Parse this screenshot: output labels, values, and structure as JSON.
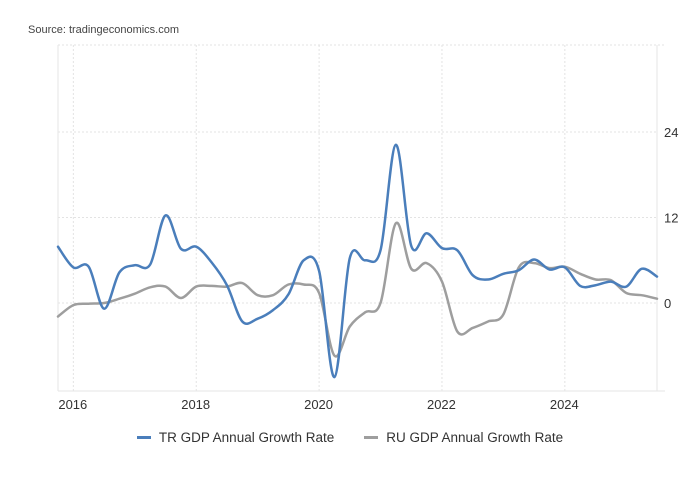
{
  "source": "Source: tradingeconomics.com",
  "chart_data": {
    "type": "line",
    "title": "",
    "xlabel": "",
    "ylabel": "",
    "xlim": [
      2015.75,
      2025.5
    ],
    "ylim": [
      -10.5,
      30
    ],
    "x_ticks": [
      2016,
      2018,
      2020,
      2022,
      2024
    ],
    "x_tick_labels": [
      "2016",
      "2018",
      "2020",
      "2022",
      "2024"
    ],
    "y_ticks": [
      0,
      12,
      24
    ],
    "y_tick_labels": [
      "0",
      "12",
      "24"
    ],
    "y_axis_side": "right",
    "grid": true,
    "legend_position": "bottom-center",
    "x": [
      2015.75,
      2016.0,
      2016.25,
      2016.5,
      2016.75,
      2017.0,
      2017.25,
      2017.5,
      2017.75,
      2018.0,
      2018.25,
      2018.5,
      2018.75,
      2019.0,
      2019.25,
      2019.5,
      2019.75,
      2020.0,
      2020.25,
      2020.5,
      2020.75,
      2021.0,
      2021.25,
      2021.5,
      2021.75,
      2022.0,
      2022.25,
      2022.5,
      2022.75,
      2023.0,
      2023.25,
      2023.5,
      2023.75,
      2024.0,
      2024.25,
      2024.5,
      2024.75,
      2025.0,
      2025.25,
      2025.5
    ],
    "series": [
      {
        "name": "TR GDP Annual Growth Rate",
        "color": "#4a7ebb",
        "values": [
          7.9,
          5.0,
          5.1,
          -0.8,
          4.3,
          5.3,
          5.4,
          12.3,
          7.6,
          7.9,
          5.7,
          2.5,
          -2.6,
          -2.2,
          -1.0,
          1.2,
          6.0,
          4.5,
          -10.4,
          6.3,
          6.0,
          7.4,
          22.2,
          8.0,
          9.8,
          7.7,
          7.4,
          3.9,
          3.3,
          4.1,
          4.6,
          6.1,
          4.7,
          5.0,
          2.4,
          2.5,
          3.0,
          2.3,
          4.8,
          3.7
        ]
      },
      {
        "name": "RU GDP Annual Growth Rate",
        "color": "#9e9e9e",
        "values": [
          -1.9,
          -0.3,
          -0.1,
          0.0,
          0.6,
          1.3,
          2.2,
          2.3,
          0.7,
          2.3,
          2.4,
          2.3,
          2.8,
          1.1,
          1.1,
          2.6,
          2.6,
          1.4,
          -7.4,
          -3.3,
          -1.3,
          0.0,
          11.2,
          4.8,
          5.6,
          3.0,
          -4.0,
          -3.5,
          -2.6,
          -1.6,
          5.0,
          5.6,
          4.9,
          5.1,
          4.1,
          3.3,
          3.2,
          1.4,
          1.1,
          0.6
        ]
      }
    ]
  }
}
